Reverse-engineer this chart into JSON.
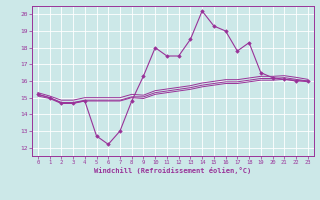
{
  "xlabel": "Windchill (Refroidissement éolien,°C)",
  "hours": [
    0,
    1,
    2,
    3,
    4,
    5,
    6,
    7,
    8,
    9,
    10,
    11,
    12,
    13,
    14,
    15,
    16,
    17,
    18,
    19,
    20,
    21,
    22,
    23
  ],
  "line1": [
    15.2,
    15.0,
    14.7,
    14.7,
    14.8,
    12.7,
    12.2,
    13.0,
    14.8,
    16.3,
    18.0,
    17.5,
    17.5,
    18.5,
    20.2,
    19.3,
    19.0,
    17.8,
    18.3,
    16.5,
    16.2,
    16.1,
    16.0,
    16.0
  ],
  "line2": [
    15.2,
    15.0,
    14.7,
    14.7,
    14.85,
    14.85,
    14.85,
    14.85,
    15.05,
    15.05,
    15.3,
    15.4,
    15.5,
    15.6,
    15.75,
    15.85,
    15.95,
    15.95,
    16.05,
    16.15,
    16.15,
    16.2,
    16.1,
    16.0
  ],
  "line3": [
    15.1,
    14.95,
    14.65,
    14.65,
    14.8,
    14.8,
    14.8,
    14.8,
    15.0,
    14.95,
    15.2,
    15.3,
    15.4,
    15.5,
    15.65,
    15.75,
    15.85,
    15.85,
    15.95,
    16.05,
    16.05,
    16.1,
    16.05,
    15.95
  ],
  "line4": [
    15.3,
    15.1,
    14.85,
    14.85,
    15.0,
    15.0,
    15.0,
    15.0,
    15.2,
    15.15,
    15.42,
    15.52,
    15.62,
    15.72,
    15.88,
    15.98,
    16.08,
    16.08,
    16.18,
    16.28,
    16.28,
    16.32,
    16.22,
    16.1
  ],
  "line_color": "#993399",
  "bg_color": "#cce8e8",
  "grid_color": "#aacccc",
  "grid_major_color": "#b8d8d8",
  "ylim": [
    11.5,
    20.5
  ],
  "yticks": [
    12,
    13,
    14,
    15,
    16,
    17,
    18,
    19,
    20
  ]
}
